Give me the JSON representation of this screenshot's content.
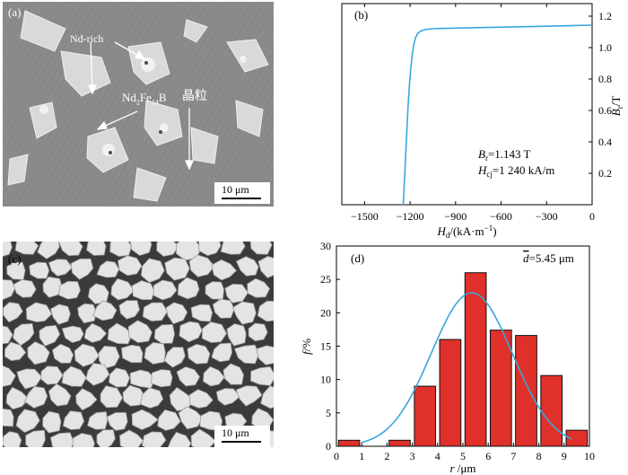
{
  "panel_a": {
    "label": "(a)",
    "annotations": {
      "nd_rich": "Nd-rich",
      "phase_base": "Nd",
      "phase_sub1": "2",
      "phase_mid": "Fe",
      "phase_sub2": "14",
      "phase_end": "B",
      "grain": "晶粒"
    },
    "scale_bar": "10 μm"
  },
  "panel_c": {
    "label": "(c)",
    "scale_bar": "10 μm"
  },
  "colors": {
    "curve": "#3aa6dd",
    "bar": "#e0302a",
    "bar_edge": "#111111",
    "sem_gray": "#8d8d8d"
  },
  "chart_data": [
    {
      "panel": "(b)",
      "type": "line",
      "xlabel_base": "H",
      "xlabel_sub": "d",
      "xlabel_unit": "/(kA·m",
      "xlabel_sup": "−1",
      "xlabel_close": ")",
      "ylabel_base": "B",
      "ylabel_sub": "r",
      "ylabel_unit": "/T",
      "xlim": [
        -1650,
        0
      ],
      "ylim": [
        0,
        1.28
      ],
      "xticks": [
        -1500,
        -1200,
        -900,
        -600,
        -300,
        0
      ],
      "yticks": [
        0.2,
        0.4,
        0.6,
        0.8,
        1.0,
        1.2
      ],
      "xtick_labels": [
        "−1500",
        "−1200",
        "−900",
        "−600",
        "−300",
        "0"
      ],
      "ytick_labels": [
        "0.2",
        "0.4",
        "0.6",
        "0.8",
        "1.0",
        "1.2"
      ],
      "series": [
        {
          "x": [
            -1245,
            -1235,
            -1225,
            -1215,
            -1205,
            -1195,
            -1185,
            -1175,
            -1165,
            -1150,
            -1130,
            -1100,
            -1050,
            -1000,
            -900,
            -700,
            -500,
            -300,
            0
          ],
          "y": [
            0.0,
            0.2,
            0.4,
            0.6,
            0.75,
            0.87,
            0.96,
            1.02,
            1.06,
            1.09,
            1.105,
            1.115,
            1.12,
            1.122,
            1.124,
            1.128,
            1.132,
            1.136,
            1.143
          ]
        }
      ],
      "annotation_lines": [
        {
          "base": "B",
          "sub": "r",
          "rest": "=1.143 T"
        },
        {
          "base": "H",
          "sub": "cj",
          "rest": "=1 240 kA/m"
        }
      ]
    },
    {
      "panel": "(d)",
      "type": "bar",
      "xlabel_base": "r",
      "xlabel_unit": " /μm",
      "ylabel_base": "f",
      "ylabel_unit": "/%",
      "xlim": [
        0,
        10
      ],
      "ylim": [
        0,
        30
      ],
      "xticks": [
        0,
        1,
        2,
        3,
        4,
        5,
        6,
        7,
        8,
        9,
        10
      ],
      "yticks": [
        0,
        5,
        10,
        15,
        20,
        25,
        30
      ],
      "bars": [
        {
          "x": 0.5,
          "value": 0.9
        },
        {
          "x": 2.5,
          "value": 0.9
        },
        {
          "x": 3.5,
          "value": 9.0
        },
        {
          "x": 4.5,
          "value": 16.0
        },
        {
          "x": 5.5,
          "value": 26.0
        },
        {
          "x": 6.5,
          "value": 17.4
        },
        {
          "x": 7.5,
          "value": 16.6
        },
        {
          "x": 8.5,
          "value": 10.6
        },
        {
          "x": 9.5,
          "value": 2.4
        }
      ],
      "fit": {
        "mean": 5.35,
        "sigma": 1.6,
        "peak": 23.0,
        "x_start": 1.0,
        "x_end": 9.3
      },
      "annotation": {
        "symbol": "d",
        "rest": "=5.45 μm"
      }
    }
  ]
}
